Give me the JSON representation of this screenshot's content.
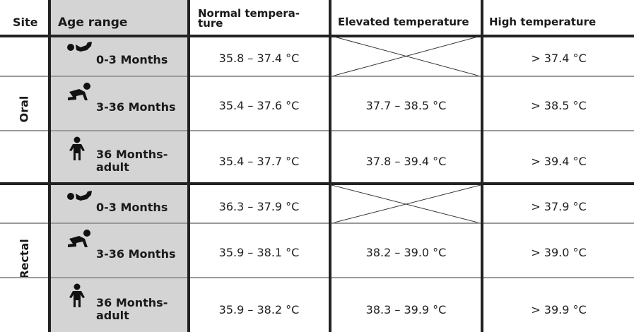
{
  "headers": {
    "site": "Site",
    "age": "Age range",
    "normal": "Normal tempera-\nture",
    "elevated": "Elevated temperature",
    "high": "High temperature"
  },
  "sites": [
    {
      "name": "Oral",
      "rows": [
        {
          "icon": "infant-icon",
          "age": "0-3 Months",
          "normal": "35.8 – 37.4 °C",
          "elevated": "",
          "high": "> 37.4 °C"
        },
        {
          "icon": "crawling-baby-icon",
          "age": "3-36 Months",
          "normal": "35.4 – 37.6 °C",
          "elevated": "37.7 – 38.5 °C",
          "high": "> 38.5 °C"
        },
        {
          "icon": "child-icon",
          "age": "36 Months-\nadult",
          "normal": "35.4 – 37.7 °C",
          "elevated": "37.8 – 39.4 °C",
          "high": "> 39.4 °C"
        }
      ]
    },
    {
      "name": "Rectal",
      "rows": [
        {
          "icon": "infant-icon",
          "age": "0-3 Months",
          "normal": "36.3 – 37.9 °C",
          "elevated": "",
          "high": "> 37.9 °C"
        },
        {
          "icon": "crawling-baby-icon",
          "age": "3-36 Months",
          "normal": "35.9 – 38.1 °C",
          "elevated": "38.2 – 39.0 °C",
          "high": "> 39.0 °C"
        },
        {
          "icon": "child-icon",
          "age": "36 Months-\nadult",
          "normal": "35.9 – 38.2 °C",
          "elevated": "38.3 – 39.9 °C",
          "high": "> 39.9 °C"
        }
      ]
    }
  ]
}
